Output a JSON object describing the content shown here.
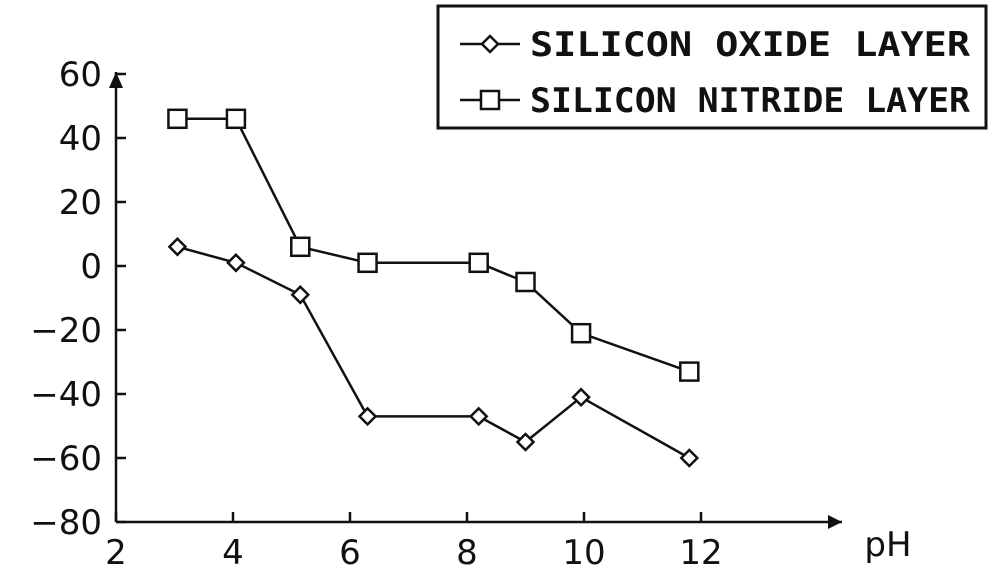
{
  "chart_data": {
    "type": "line",
    "xlabel": "pH",
    "ylabel": "",
    "xlim": [
      2,
      14
    ],
    "ylim": [
      -80,
      60
    ],
    "xticks": [
      2,
      4,
      6,
      8,
      10,
      12
    ],
    "yticks": [
      60,
      40,
      20,
      0,
      -20,
      -40,
      -60,
      -80
    ],
    "xtick_labels": [
      "2",
      "4",
      "6",
      "8",
      "10",
      "12"
    ],
    "ytick_labels": [
      "60",
      "40",
      "20",
      "0",
      "−20",
      "−40",
      "−60",
      "−80"
    ],
    "grid": false,
    "legend_position": "top-right",
    "series": [
      {
        "name": "SILICON OXIDE LAYER",
        "marker": "diamond",
        "color": "#111111",
        "x": [
          3.05,
          4.05,
          5.15,
          6.3,
          8.2,
          9.0,
          9.95,
          11.8
        ],
        "y": [
          6,
          1,
          -9,
          -47,
          -47,
          -55,
          -41,
          -60
        ]
      },
      {
        "name": "SILICON NITRIDE LAYER",
        "marker": "square",
        "color": "#111111",
        "x": [
          3.05,
          4.05,
          5.15,
          6.3,
          8.2,
          9.0,
          9.95,
          11.8
        ],
        "y": [
          46,
          46,
          6,
          1,
          1,
          -5,
          -21,
          -33
        ]
      }
    ]
  }
}
